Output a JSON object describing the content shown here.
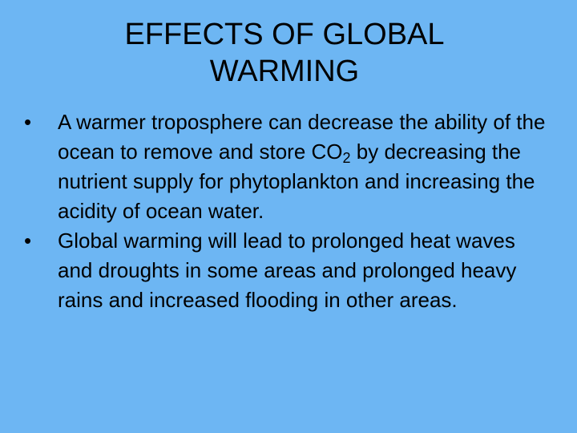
{
  "title": "EFFECTS OF GLOBAL WARMING",
  "bullets": [
    {
      "parts": [
        "A warmer troposphere can decrease the ability of the ocean to remove and store CO",
        "2",
        " by decreasing the nutrient supply for phytoplankton and increasing the acidity of ocean water."
      ]
    },
    {
      "parts": [
        "Global warming will lead to prolonged heat waves and droughts in some areas and prolonged heavy rains and increased flooding in other areas."
      ]
    }
  ]
}
